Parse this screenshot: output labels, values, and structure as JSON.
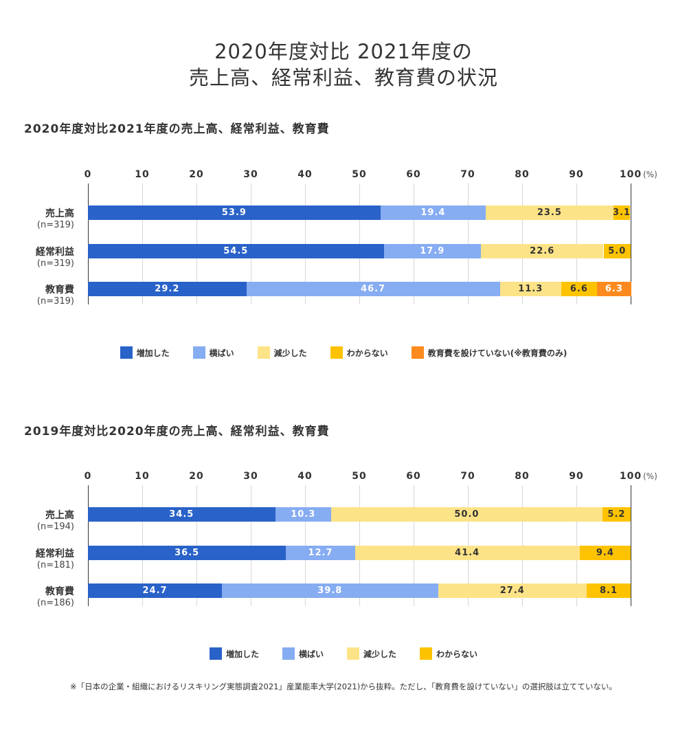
{
  "title": {
    "line1": "2020年度対比 2021年度の",
    "line2": "売上高、経常利益、教育費の状況"
  },
  "colors": {
    "increase": "#2962c8",
    "flat": "#86acf2",
    "decrease": "#fde387",
    "unknown": "#fdc300",
    "none": "#fd8a1e"
  },
  "chart_data": [
    {
      "type": "bar",
      "orientation": "horizontal-stacked",
      "title": "2020年度対比2021年度の売上高、経常利益、教育費",
      "xlim": [
        0,
        100
      ],
      "ticks": [
        "0",
        "10",
        "20",
        "30",
        "40",
        "50",
        "60",
        "70",
        "80",
        "90",
        "100"
      ],
      "unit": "(%)",
      "grid": true,
      "legend_position": "bottom",
      "categories": [
        {
          "label": "売上高",
          "n": "(n=319)"
        },
        {
          "label": "経常利益",
          "n": "(n=319)"
        },
        {
          "label": "教育費",
          "n": "(n=319)"
        }
      ],
      "series": [
        {
          "name": "増加した",
          "color_key": "increase",
          "values": [
            53.9,
            54.5,
            29.2
          ],
          "labels": [
            "53.9",
            "54.5",
            "29.2"
          ]
        },
        {
          "name": "横ばい",
          "color_key": "flat",
          "values": [
            19.4,
            17.9,
            46.7
          ],
          "labels": [
            "19.4",
            "17.9",
            "46.7"
          ]
        },
        {
          "name": "減少した",
          "color_key": "decrease",
          "values": [
            23.5,
            22.6,
            11.3
          ],
          "labels": [
            "23.5",
            "22.6",
            "11.3"
          ]
        },
        {
          "name": "わからない",
          "color_key": "unknown",
          "values": [
            3.1,
            5.0,
            6.6
          ],
          "labels": [
            "3.1",
            "5.0",
            "6.6"
          ]
        },
        {
          "name": "教育費を設けていない(※教育費のみ)",
          "color_key": "none",
          "values": [
            0,
            0,
            6.3
          ],
          "labels": [
            "",
            "",
            "6.3"
          ]
        }
      ]
    },
    {
      "type": "bar",
      "orientation": "horizontal-stacked",
      "title": "2019年度対比2020年度の売上高、経常利益、教育費",
      "xlim": [
        0,
        100
      ],
      "ticks": [
        "0",
        "10",
        "20",
        "30",
        "40",
        "50",
        "60",
        "70",
        "80",
        "90",
        "100"
      ],
      "unit": "(%)",
      "grid": true,
      "legend_position": "bottom",
      "categories": [
        {
          "label": "売上高",
          "n": "(n=194)"
        },
        {
          "label": "経常利益",
          "n": "(n=181)"
        },
        {
          "label": "教育費",
          "n": "(n=186)"
        }
      ],
      "series": [
        {
          "name": "増加した",
          "color_key": "increase",
          "values": [
            34.5,
            36.5,
            24.7
          ],
          "labels": [
            "34.5",
            "36.5",
            "24.7"
          ]
        },
        {
          "name": "横ばい",
          "color_key": "flat",
          "values": [
            10.3,
            12.7,
            39.8
          ],
          "labels": [
            "10.3",
            "12.7",
            "39.8"
          ]
        },
        {
          "name": "減少した",
          "color_key": "decrease",
          "values": [
            50.0,
            41.4,
            27.4
          ],
          "labels": [
            "50.0",
            "41.4",
            "27.4"
          ]
        },
        {
          "name": "わからない",
          "color_key": "unknown",
          "values": [
            5.2,
            9.4,
            8.1
          ],
          "labels": [
            "5.2",
            "9.4",
            "8.1"
          ]
        }
      ]
    }
  ],
  "footnote": "※「日本の企業・組織におけるリスキリング実態調査2021」産業能率大学(2021)から抜粋。ただし、「教育費を設けていない」の選択肢は立てていない。"
}
